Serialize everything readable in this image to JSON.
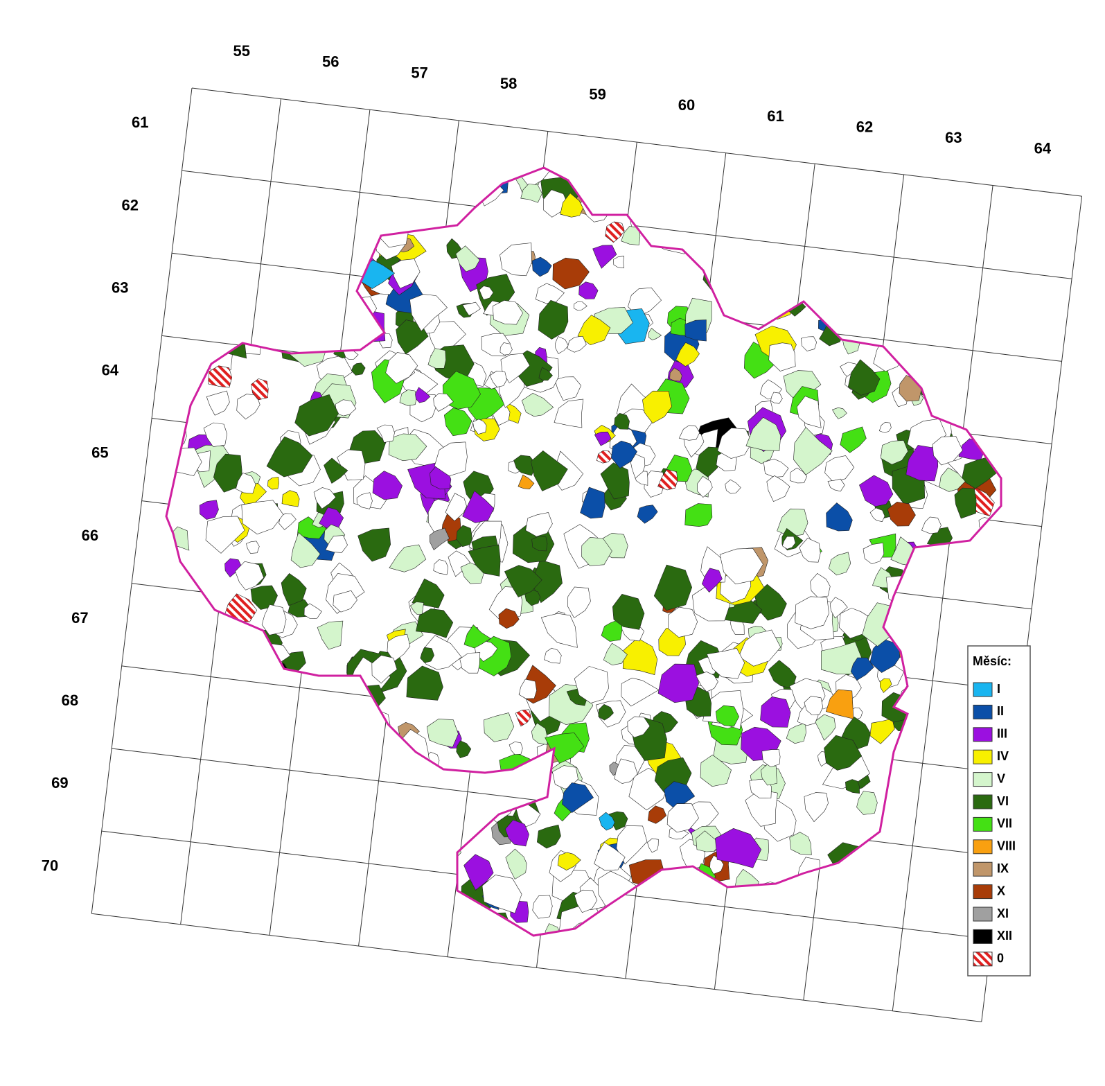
{
  "map": {
    "column_labels": [
      "55",
      "56",
      "57",
      "58",
      "59",
      "60",
      "61",
      "62",
      "63",
      "64"
    ],
    "row_labels": [
      "61",
      "62",
      "63",
      "64",
      "65",
      "66",
      "67",
      "68",
      "69",
      "70"
    ],
    "legend": {
      "title": "Měsíc:",
      "items": [
        {
          "label": "I",
          "color": "#19b5f0"
        },
        {
          "label": "II",
          "color": "#0b4fa8"
        },
        {
          "label": "III",
          "color": "#9b10e0"
        },
        {
          "label": "IV",
          "color": "#f8f000"
        },
        {
          "label": "V",
          "color": "#d4f5cc"
        },
        {
          "label": "VI",
          "color": "#2a6a10"
        },
        {
          "label": "VII",
          "color": "#44e014"
        },
        {
          "label": "VIII",
          "color": "#f9a010"
        },
        {
          "label": "IX",
          "color": "#c0966a"
        },
        {
          "label": "X",
          "color": "#a83c08"
        },
        {
          "label": "XI",
          "color": "#a0a0a0"
        },
        {
          "label": "XII",
          "color": "#000000"
        },
        {
          "label": "0",
          "color": "#e02020",
          "pattern": "hatch"
        }
      ]
    }
  }
}
